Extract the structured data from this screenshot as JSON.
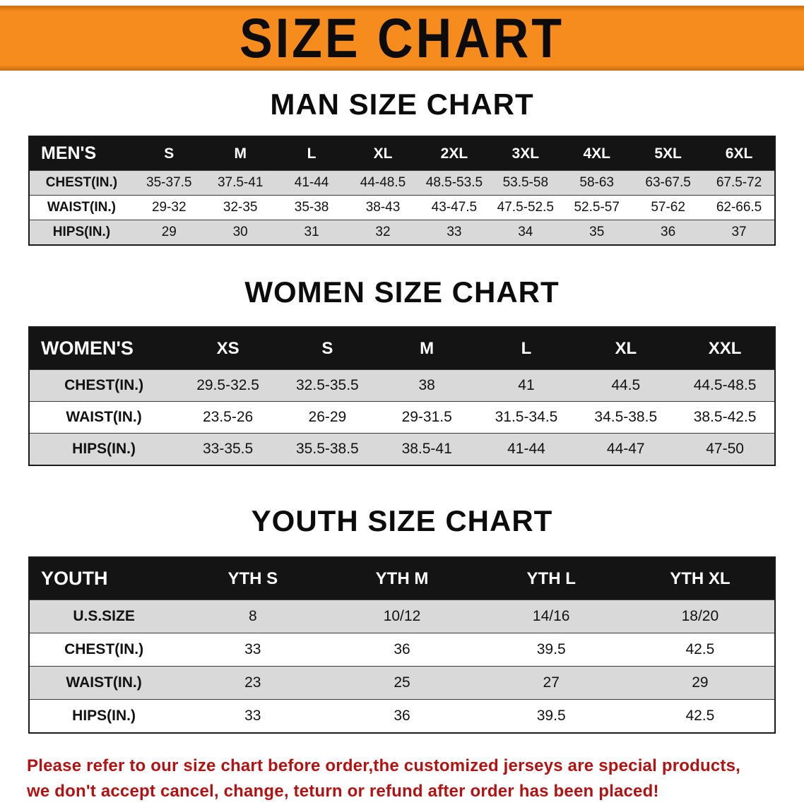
{
  "colors": {
    "accent_orange": "#f68b1e",
    "table_header_bg": "#141414",
    "row_alt_gray": "#d9d9d9",
    "note_red": "#b21212",
    "text_black": "#121212"
  },
  "banner": {
    "title": "SIZE CHART"
  },
  "sections": [
    {
      "heading": "MAN SIZE CHART",
      "table": {
        "header": [
          "MEN'S",
          "S",
          "M",
          "L",
          "XL",
          "2XL",
          "3XL",
          "4XL",
          "5XL",
          "6XL"
        ],
        "rows": [
          {
            "label": "CHEST(IN.)",
            "values": [
              "35-37.5",
              "37.5-41",
              "41-44",
              "44-48.5",
              "48.5-53.5",
              "53.5-58",
              "58-63",
              "63-67.5",
              "67.5-72"
            ]
          },
          {
            "label": "WAIST(IN.)",
            "values": [
              "29-32",
              "32-35",
              "35-38",
              "38-43",
              "43-47.5",
              "47.5-52.5",
              "52.5-57",
              "57-62",
              "62-66.5"
            ]
          },
          {
            "label": "HIPS(IN.)",
            "values": [
              "29",
              "30",
              "31",
              "32",
              "33",
              "34",
              "35",
              "36",
              "37"
            ]
          }
        ]
      }
    },
    {
      "heading": "WOMEN SIZE CHART",
      "table": {
        "header": [
          "WOMEN'S",
          "XS",
          "S",
          "M",
          "L",
          "XL",
          "XXL"
        ],
        "rows": [
          {
            "label": "CHEST(IN.)",
            "values": [
              "29.5-32.5",
              "32.5-35.5",
              "38",
              "41",
              "44.5",
              "44.5-48.5"
            ]
          },
          {
            "label": "WAIST(IN.)",
            "values": [
              "23.5-26",
              "26-29",
              "29-31.5",
              "31.5-34.5",
              "34.5-38.5",
              "38.5-42.5"
            ]
          },
          {
            "label": "HIPS(IN.)",
            "values": [
              "33-35.5",
              "35.5-38.5",
              "38.5-41",
              "41-44",
              "44-47",
              "47-50"
            ]
          }
        ]
      }
    },
    {
      "heading": "YOUTH SIZE CHART",
      "table": {
        "header": [
          "YOUTH",
          "YTH S",
          "YTH M",
          "YTH L",
          "YTH XL"
        ],
        "rows": [
          {
            "label": "U.S.SIZE",
            "values": [
              "8",
              "10/12",
              "14/16",
              "18/20"
            ]
          },
          {
            "label": "CHEST(IN.)",
            "values": [
              "33",
              "36",
              "39.5",
              "42.5"
            ]
          },
          {
            "label": "WAIST(IN.)",
            "values": [
              "23",
              "25",
              "27",
              "29"
            ]
          },
          {
            "label": "HIPS(IN.)",
            "values": [
              "33",
              "36",
              "39.5",
              "42.5"
            ]
          }
        ]
      }
    }
  ],
  "note": {
    "line1": "Please refer to our size chart before order,the customized jerseys are special products,",
    "line2": "we don't accept cancel, change, teturn or refund after order has been placed!"
  }
}
